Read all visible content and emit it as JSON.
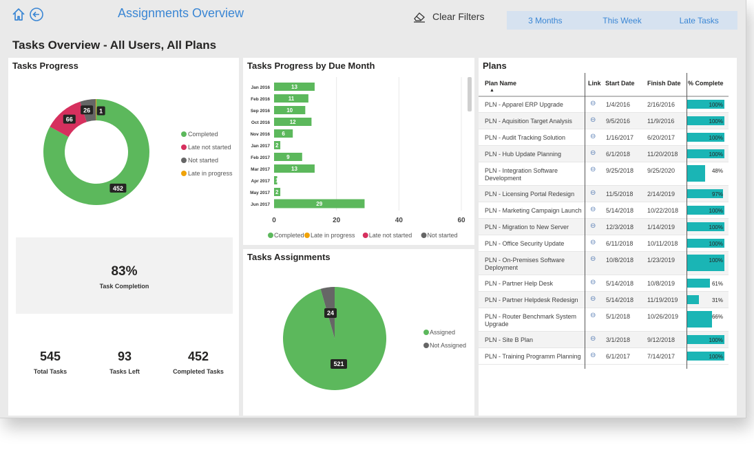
{
  "header": {
    "title": "Assignments Overview",
    "clear_filters": "Clear Filters",
    "tabs": [
      "3 Months",
      "This Week",
      "Late Tasks"
    ]
  },
  "page_title": "Tasks Overview - All Users, All Plans",
  "tasks_progress": {
    "title": "Tasks Progress",
    "legend": [
      {
        "label": "Completed",
        "color": "#5cb85c"
      },
      {
        "label": "Late not started",
        "color": "#d6305e"
      },
      {
        "label": "Not started",
        "color": "#666666"
      },
      {
        "label": "Late in progress",
        "color": "#f0a30a"
      }
    ],
    "kpi_value": "83%",
    "kpi_caption": "Task Completion",
    "stats": [
      {
        "value": "545",
        "caption": "Total Tasks"
      },
      {
        "value": "93",
        "caption": "Tasks Left"
      },
      {
        "value": "452",
        "caption": "Completed Tasks"
      }
    ]
  },
  "by_month": {
    "title": "Tasks Progress by Due Month",
    "legend": [
      {
        "label": "Completed",
        "color": "#5cb85c"
      },
      {
        "label": "Late in progress",
        "color": "#f0a30a"
      },
      {
        "label": "Late not started",
        "color": "#d6305e"
      },
      {
        "label": "Not started",
        "color": "#666666"
      }
    ]
  },
  "assignments": {
    "title": "Tasks Assignments",
    "legend": [
      {
        "label": "Assigned",
        "color": "#5cb85c"
      },
      {
        "label": "Not Assigned",
        "color": "#666666"
      }
    ]
  },
  "chart_data": [
    {
      "type": "pie",
      "title": "Tasks Progress",
      "categories": [
        "Completed",
        "Late not started",
        "Not started",
        "Late in progress"
      ],
      "values": [
        452,
        66,
        26,
        1
      ]
    },
    {
      "type": "bar",
      "title": "Tasks Progress by Due Month",
      "orientation": "horizontal",
      "categories": [
        "Jan 2016",
        "Feb 2016",
        "Sep 2016",
        "Oct 2016",
        "Nov 2016",
        "Jan 2017",
        "Feb 2017",
        "Mar 2017",
        "Apr 2017",
        "May 2017",
        "Jun 2017"
      ],
      "series": [
        {
          "name": "Completed",
          "values": [
            13,
            11,
            10,
            12,
            6,
            2,
            9,
            13,
            1,
            2,
            29
          ]
        }
      ],
      "xlim": [
        0,
        60
      ],
      "xticks": [
        0,
        20,
        40,
        60
      ],
      "grid": true
    },
    {
      "type": "pie",
      "title": "Tasks Assignments",
      "categories": [
        "Assigned",
        "Not Assigned"
      ],
      "values": [
        521,
        24
      ]
    }
  ],
  "plans": {
    "title": "Plans",
    "columns": [
      "Plan Name",
      "Link",
      "Start Date",
      "Finish Date",
      "% Complete"
    ],
    "rows": [
      {
        "name": [
          "PLN - Apparel ERP Upgrade"
        ],
        "start": "1/4/2016",
        "finish": "2/16/2016",
        "pct": 100,
        "pct_label": "100%"
      },
      {
        "name": [
          "PLN - Aquisition Target Analysis"
        ],
        "start": "9/5/2016",
        "finish": "11/9/2016",
        "pct": 100,
        "pct_label": "100%"
      },
      {
        "name": [
          "PLN - Audit Tracking Solution"
        ],
        "start": "1/16/2017",
        "finish": "6/20/2017",
        "pct": 100,
        "pct_label": "100%"
      },
      {
        "name": [
          "PLN - Hub Update Planning"
        ],
        "start": "6/1/2018",
        "finish": "11/20/2018",
        "pct": 100,
        "pct_label": "100%"
      },
      {
        "name": [
          "PLN - Integration Software",
          "Development"
        ],
        "start": "9/25/2018",
        "finish": "9/25/2020",
        "pct": 48,
        "pct_label": "48%"
      },
      {
        "name": [
          "PLN - Licensing Portal Redesign"
        ],
        "start": "11/5/2018",
        "finish": "2/14/2019",
        "pct": 97,
        "pct_label": "97%"
      },
      {
        "name": [
          "PLN - Marketing Campaign Launch"
        ],
        "start": "5/14/2018",
        "finish": "10/22/2018",
        "pct": 100,
        "pct_label": "100%"
      },
      {
        "name": [
          "PLN - Migration to New Server"
        ],
        "start": "12/3/2018",
        "finish": "1/14/2019",
        "pct": 100,
        "pct_label": "100%"
      },
      {
        "name": [
          "PLN - Office Security Update"
        ],
        "start": "6/11/2018",
        "finish": "10/11/2018",
        "pct": 100,
        "pct_label": "100%"
      },
      {
        "name": [
          "PLN - On-Premises Software",
          "Deployment"
        ],
        "start": "10/8/2018",
        "finish": "1/23/2019",
        "pct": 100,
        "pct_label": "100%"
      },
      {
        "name": [
          "PLN - Partner Help Desk"
        ],
        "start": "5/14/2018",
        "finish": "10/8/2019",
        "pct": 61,
        "pct_label": "61%"
      },
      {
        "name": [
          "PLN - Partner Helpdesk Redesign"
        ],
        "start": "5/14/2018",
        "finish": "11/19/2019",
        "pct": 31,
        "pct_label": "31%"
      },
      {
        "name": [
          "PLN - Router Benchmark System",
          "Upgrade"
        ],
        "start": "5/1/2018",
        "finish": "10/26/2019",
        "pct": 66,
        "pct_label": "66%"
      },
      {
        "name": [
          "PLN - Site B Plan"
        ],
        "start": "3/1/2018",
        "finish": "9/12/2018",
        "pct": 100,
        "pct_label": "100%"
      },
      {
        "name": [
          "PLN - Training Programm Planning"
        ],
        "start": "6/1/2017",
        "finish": "7/14/2017",
        "pct": 100,
        "pct_label": "100%"
      }
    ]
  },
  "colors": {
    "accent": "#3a86d4",
    "completed": "#5cb85c",
    "late_not_started": "#d6305e",
    "not_started": "#666666",
    "late_in_progress": "#f0a30a",
    "progress_bar": "#1ab5b5"
  },
  "icons": {
    "home": "home-icon",
    "back": "back-circle-icon",
    "eraser": "eraser-icon",
    "link": "link-icon"
  }
}
